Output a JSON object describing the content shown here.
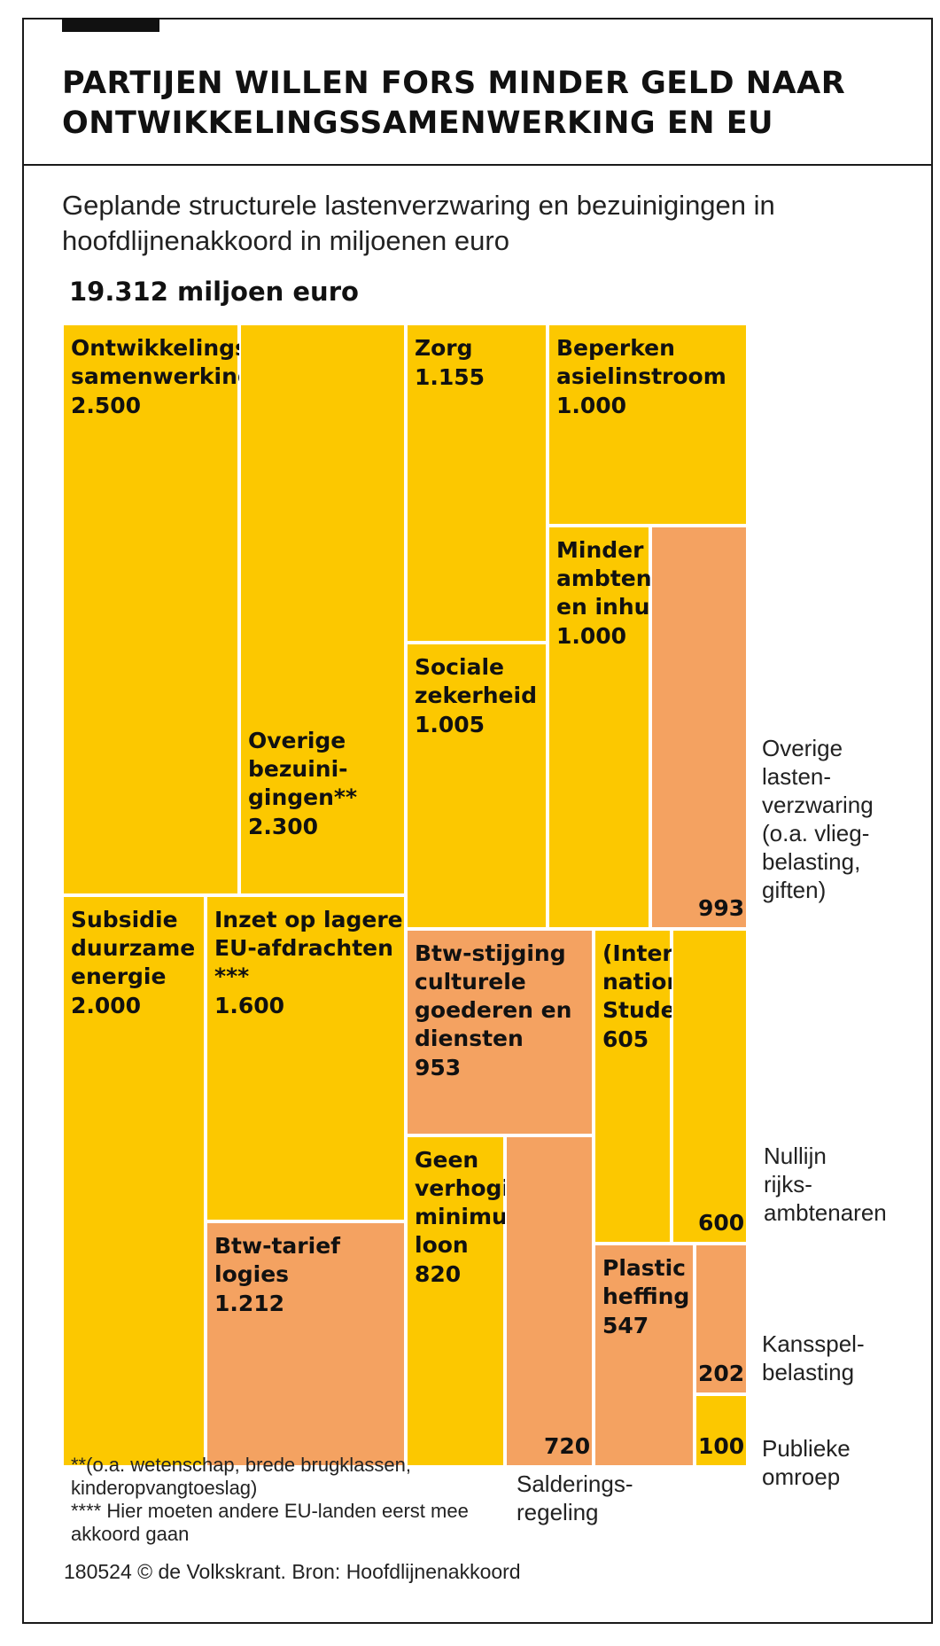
{
  "header": {
    "title": "PARTIJEN WILLEN FORS MINDER GELD NAAR ONTWIKKELINGSSAMENWERKING EN EU",
    "subtitle": "Geplande structurele lastenverzwaring en bezuinigingen in hoofdlijnenakkoord in miljoenen euro"
  },
  "colors": {
    "bezuiniging": "#fcc800",
    "lastenverzwaring": "#f4a261"
  },
  "chart_data": {
    "type": "treemap",
    "title": "PARTIJEN WILLEN FORS MINDER GELD NAAR ONTWIKKELINGSSAMENWERKING EN EU",
    "subtitle": "Geplande structurele lastenverzwaring en bezuinigingen in hoofdlijnenakkoord in miljoenen euro",
    "total_label": "19.312 miljoen euro",
    "total": 19312,
    "items": [
      {
        "label": "Ontwikkelings-\nsamenwerking",
        "value": 2500,
        "display": "2.500",
        "color": "#fcc800"
      },
      {
        "label": "Overige\nbezuini-\ngingen**",
        "value": 2300,
        "display": "2.300",
        "color": "#fcc800"
      },
      {
        "label": "Zorg",
        "value": 1155,
        "display": "1.155",
        "color": "#fcc800"
      },
      {
        "label": "Beperken\nasielinstroom",
        "value": 1000,
        "display": "1.000",
        "color": "#fcc800"
      },
      {
        "label": "Minder\nambtenaren\nen inhuur",
        "value": 1000,
        "display": "1.000",
        "color": "#fcc800"
      },
      {
        "label": "Overige\nlasten-\nverzwaring\n(o.a. vlieg-\nbelasting,\ngiften)",
        "value": 993,
        "display": "993",
        "color": "#f4a261"
      },
      {
        "label": "Sociale\nzekerheid",
        "value": 1005,
        "display": "1.005",
        "color": "#fcc800"
      },
      {
        "label": "Subsidie\nduurzame\nenergie",
        "value": 2000,
        "display": "2.000",
        "color": "#fcc800"
      },
      {
        "label": "Inzet op lagere\nEU-afdrachten\n***",
        "value": 1600,
        "display": "1.600",
        "color": "#fcc800"
      },
      {
        "label": "Btw-tarief\nlogies",
        "value": 1212,
        "display": "1.212",
        "color": "#f4a261"
      },
      {
        "label": "Btw-stijging\nculturele\ngoederen en\ndiensten",
        "value": 953,
        "display": "953",
        "color": "#f4a261"
      },
      {
        "label": "Geen\nverhoging\nminimum-\nloon",
        "value": 820,
        "display": "820",
        "color": "#fcc800"
      },
      {
        "label": "Salderings-\nregeling",
        "value": 720,
        "display": "720",
        "color": "#f4a261"
      },
      {
        "label": "(Inter-\nnationale)\nStudenten",
        "value": 605,
        "display": "605",
        "color": "#fcc800"
      },
      {
        "label": "Nullijn\nrijks-\nambtenaren",
        "value": 600,
        "display": "600",
        "color": "#fcc800"
      },
      {
        "label": "Plastic\nheffing",
        "value": 547,
        "display": "547",
        "color": "#f4a261"
      },
      {
        "label": "Kansspel-\nbelasting",
        "value": 202,
        "display": "202",
        "color": "#f4a261"
      },
      {
        "label": "Publieke\nomroep",
        "value": 100,
        "display": "100",
        "color": "#fcc800"
      }
    ]
  },
  "footnotes": {
    "double_star": "**(o.a. wetenschap, brede brugklassen, kinderopvangtoeslag)",
    "quad_star": "**** Hier moeten andere EU-landen eerst mee akkoord gaan"
  },
  "credit": "180524 © de Volkskrant. Bron: Hoofdlijnenakkoord"
}
